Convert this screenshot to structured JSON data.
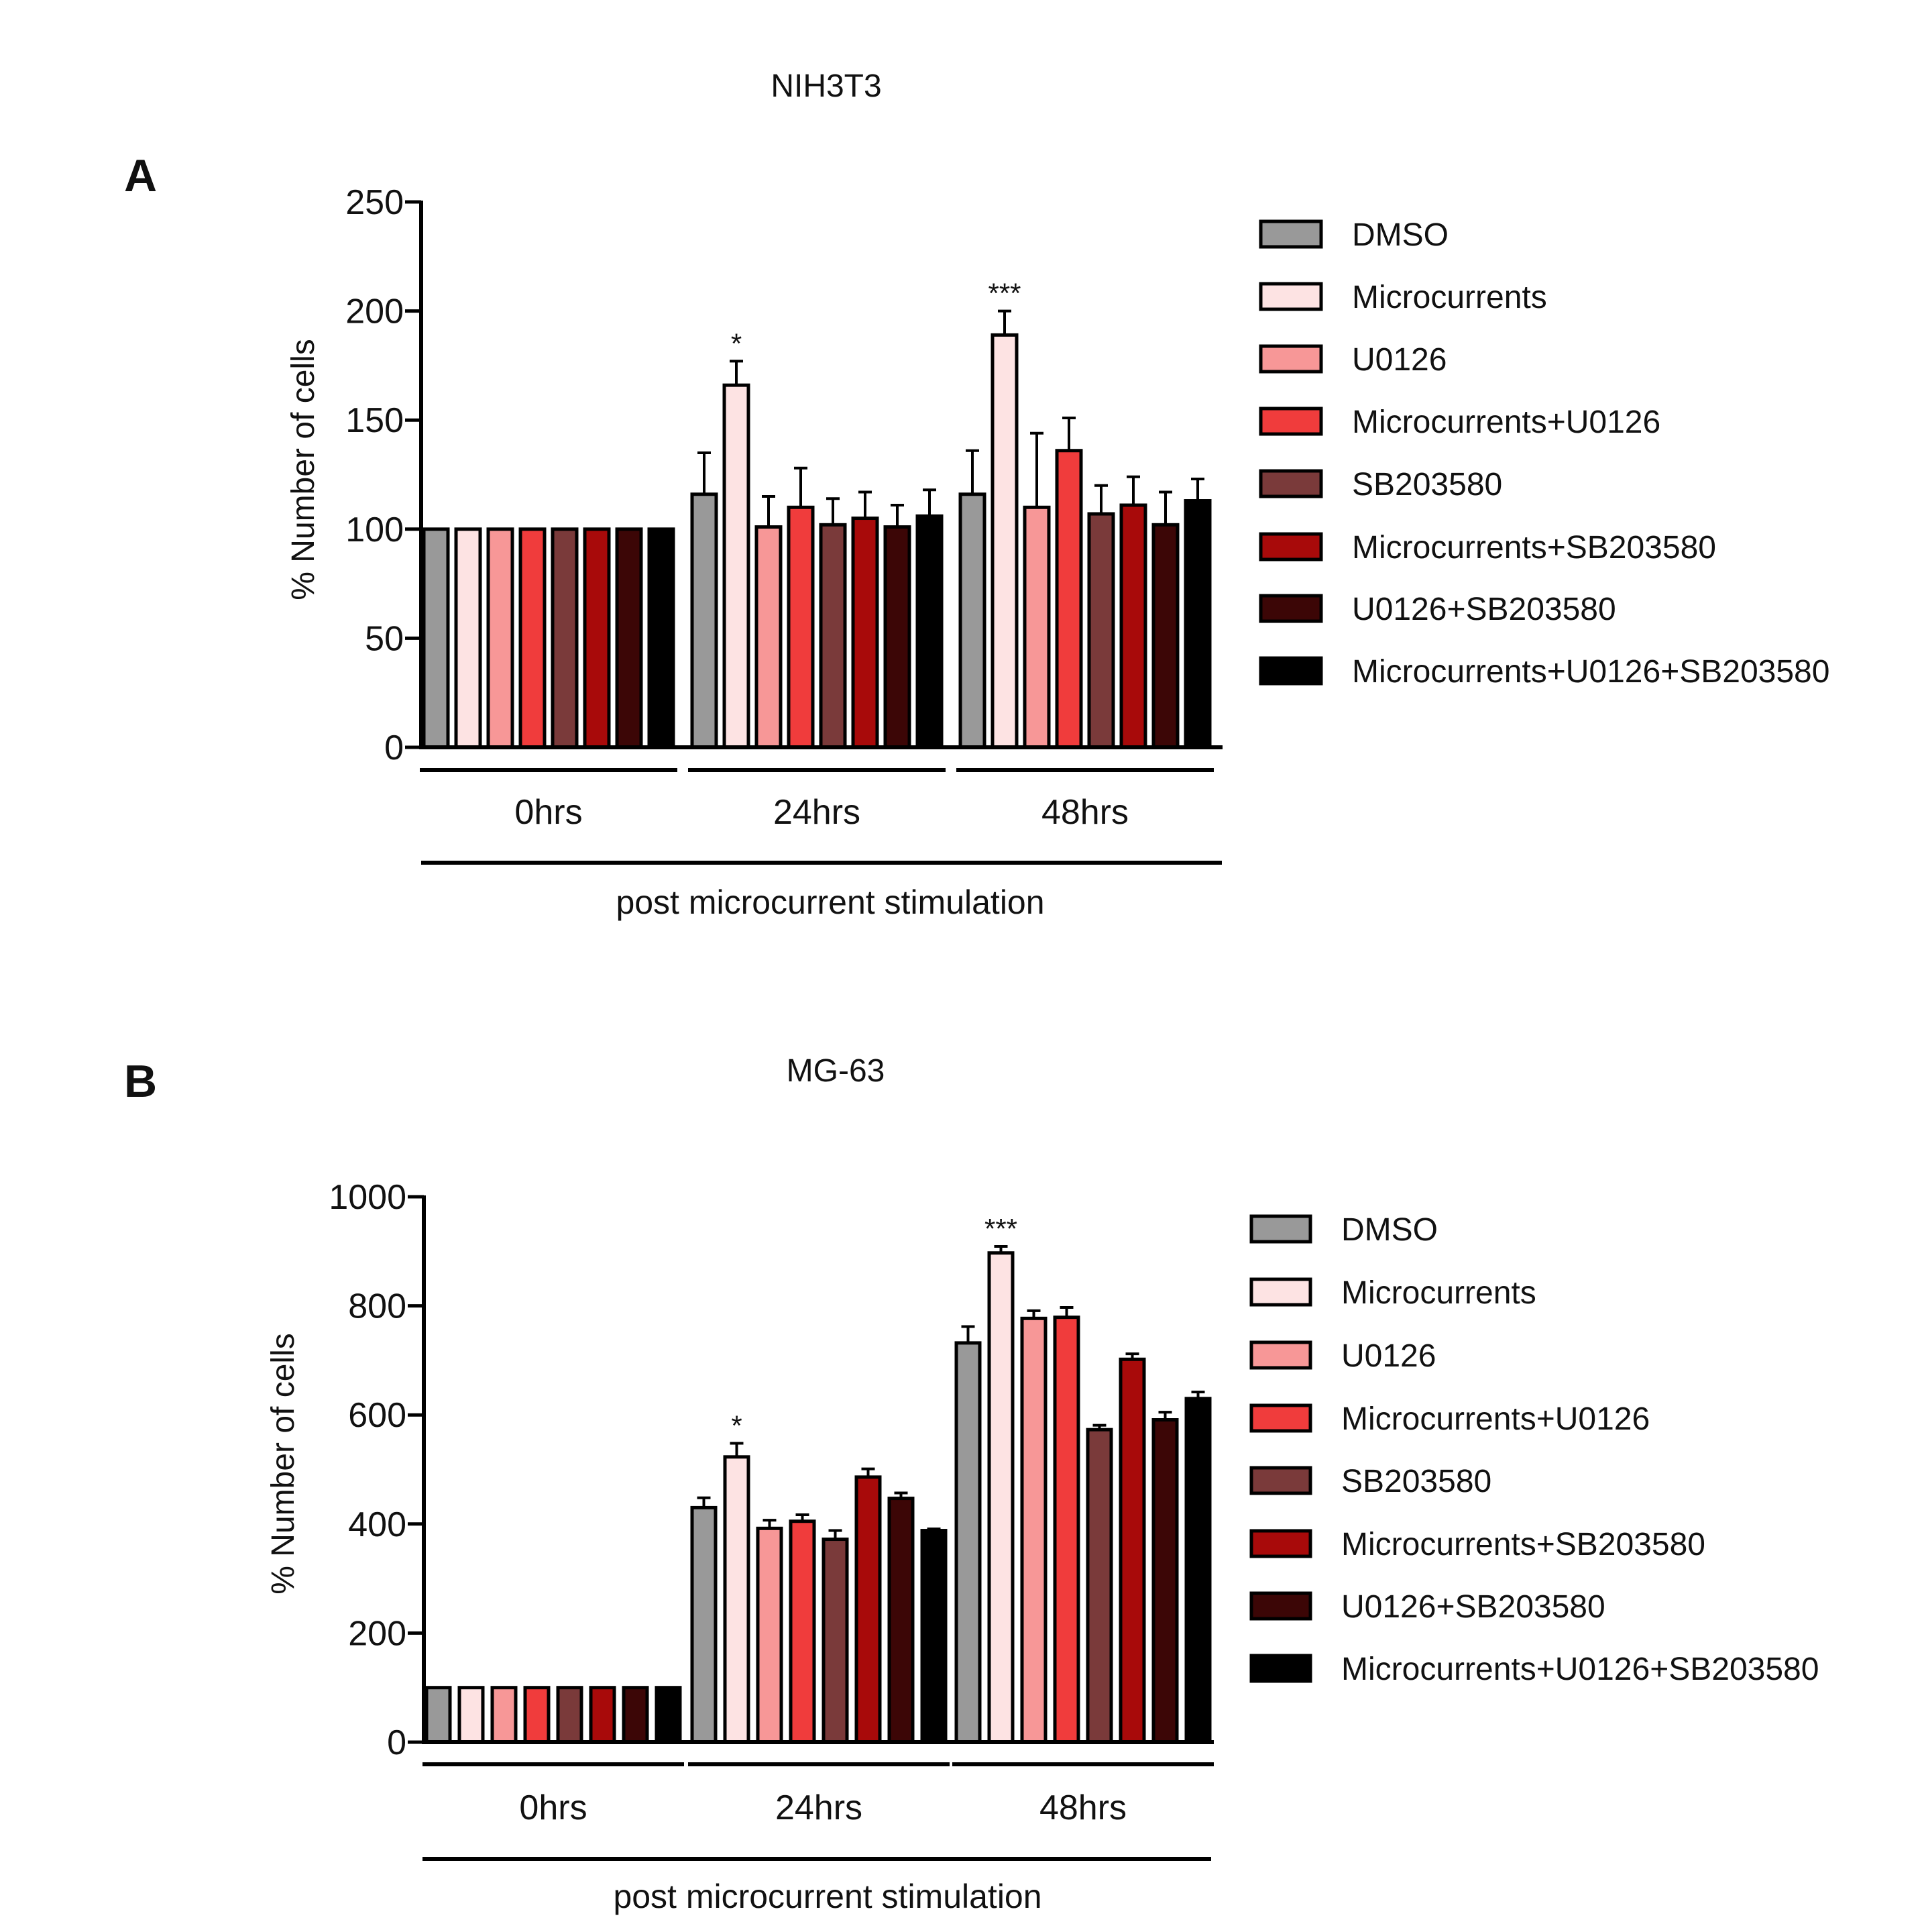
{
  "chart_data": [
    {
      "panel_label": "A",
      "type": "bar",
      "title": "NIH3T3",
      "xlabel": "post microcurrent stimulation",
      "ylabel": "% Number of cells",
      "ylim": [
        0,
        250
      ],
      "yticks": [
        0,
        50,
        100,
        150,
        200,
        250
      ],
      "categories": [
        "0hrs",
        "24hrs",
        "48hrs"
      ],
      "grid": false,
      "legend_position": "right",
      "series": [
        {
          "name": "DMSO",
          "color": "#999999",
          "values": [
            100,
            116,
            116
          ],
          "errors": [
            0,
            19,
            20
          ]
        },
        {
          "name": "Microcurrents",
          "color": "#fde3e3",
          "values": [
            100,
            166,
            189
          ],
          "errors": [
            0,
            11,
            11
          ]
        },
        {
          "name": "U0126",
          "color": "#f79797",
          "values": [
            100,
            101,
            110
          ],
          "errors": [
            0,
            14,
            34
          ]
        },
        {
          "name": "Microcurrents+U0126",
          "color": "#f03c3c",
          "values": [
            100,
            110,
            136
          ],
          "errors": [
            0,
            18,
            15
          ]
        },
        {
          "name": "SB203580",
          "color": "#7a3a3a",
          "values": [
            100,
            102,
            107
          ],
          "errors": [
            0,
            12,
            13
          ]
        },
        {
          "name": "Microcurrents+SB203580",
          "color": "#a80a0a",
          "values": [
            100,
            105,
            111
          ],
          "errors": [
            0,
            12,
            13
          ]
        },
        {
          "name": "U0126+SB203580",
          "color": "#3c0606",
          "values": [
            100,
            101,
            102
          ],
          "errors": [
            0,
            10,
            15
          ]
        },
        {
          "name": "Microcurrents+U0126+SB203580",
          "color": "#000000",
          "values": [
            100,
            106,
            113
          ],
          "errors": [
            0,
            12,
            10
          ]
        }
      ],
      "annotations": [
        {
          "text": "*",
          "category": "24hrs",
          "series": "Microcurrents"
        },
        {
          "text": "***",
          "category": "48hrs",
          "series": "Microcurrents"
        }
      ]
    },
    {
      "panel_label": "B",
      "type": "bar",
      "title": "MG-63",
      "xlabel": "post microcurrent stimulation",
      "ylabel": "% Number of cells",
      "ylim": [
        0,
        1000
      ],
      "yticks": [
        0,
        200,
        400,
        600,
        800,
        1000
      ],
      "categories": [
        "0hrs",
        "24hrs",
        "48hrs"
      ],
      "grid": false,
      "legend_position": "right",
      "series": [
        {
          "name": "DMSO",
          "color": "#999999",
          "values": [
            100,
            430,
            732
          ],
          "errors": [
            0,
            18,
            30
          ]
        },
        {
          "name": "Microcurrents",
          "color": "#fde3e3",
          "values": [
            100,
            523,
            897
          ],
          "errors": [
            0,
            25,
            12
          ]
        },
        {
          "name": "U0126",
          "color": "#f79797",
          "values": [
            100,
            392,
            777
          ],
          "errors": [
            0,
            15,
            14
          ]
        },
        {
          "name": "Microcurrents+U0126",
          "color": "#f03c3c",
          "values": [
            100,
            405,
            779
          ],
          "errors": [
            0,
            12,
            18
          ]
        },
        {
          "name": "SB203580",
          "color": "#7a3a3a",
          "values": [
            100,
            372,
            573
          ],
          "errors": [
            0,
            16,
            8
          ]
        },
        {
          "name": "Microcurrents+SB203580",
          "color": "#a80a0a",
          "values": [
            100,
            486,
            702
          ],
          "errors": [
            0,
            15,
            10
          ]
        },
        {
          "name": "U0126+SB203580",
          "color": "#3c0606",
          "values": [
            100,
            447,
            591
          ],
          "errors": [
            0,
            10,
            14
          ]
        },
        {
          "name": "Microcurrents+U0126+SB203580",
          "color": "#000000",
          "values": [
            100,
            388,
            630
          ],
          "errors": [
            0,
            3,
            12
          ]
        }
      ],
      "annotations": [
        {
          "text": "*",
          "category": "24hrs",
          "series": "Microcurrents"
        },
        {
          "text": "***",
          "category": "48hrs",
          "series": "Microcurrents"
        }
      ]
    }
  ]
}
